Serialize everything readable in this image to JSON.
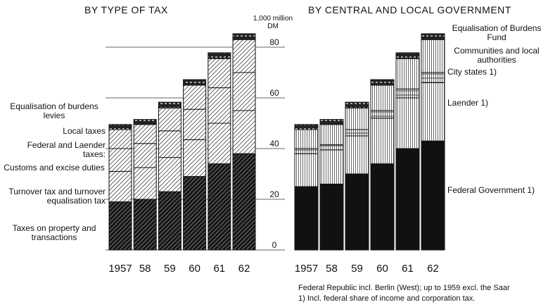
{
  "unit": "1,000 million DM",
  "footnotes": [
    "Federal Republic incl. Berlin (West); up to 1959 excl. the Saar",
    "1) Incl. federal share of income and corporation tax."
  ],
  "chart_data": [
    {
      "type": "stacked-bar",
      "title": "BY TYPE OF TAX",
      "annotation": "Federal and Laender taxes:",
      "categories": [
        "1957",
        "58",
        "59",
        "60",
        "61",
        "62"
      ],
      "ylim": [
        0,
        90
      ],
      "yticks": [
        0,
        20,
        40,
        60,
        80
      ],
      "grid": true,
      "series": [
        {
          "name": "Taxes on property and transactions",
          "color": "#111111",
          "values": [
            19,
            20,
            23,
            29,
            34,
            38
          ]
        },
        {
          "name": "Turnover tax and turnover equalisation tax",
          "color": "#555555",
          "values": [
            12,
            12.5,
            13.5,
            14.5,
            16,
            17
          ]
        },
        {
          "name": "Customs and excise duties",
          "color": "#555555",
          "values": [
            9,
            9.5,
            10.5,
            12,
            14,
            15
          ]
        },
        {
          "name": "Local taxes",
          "color": "#555555",
          "values": [
            7.5,
            7.5,
            9,
            9.5,
            11.5,
            13
          ]
        },
        {
          "name": "Equalisation of burdens levies",
          "color": "#222222",
          "values": [
            2,
            2,
            2.3,
            2.2,
            2.3,
            2.3
          ]
        }
      ]
    },
    {
      "type": "stacked-bar",
      "title": "BY CENTRAL AND LOCAL GOVERNMENT",
      "categories": [
        "1957",
        "58",
        "59",
        "60",
        "61",
        "62"
      ],
      "ylim": [
        0,
        90
      ],
      "series": [
        {
          "name": "Federal Government 1)",
          "color": "#111111",
          "values": [
            25,
            26,
            30,
            34,
            40,
            43
          ]
        },
        {
          "name": "Laender 1)",
          "color": "#444444",
          "values": [
            13,
            13.5,
            15,
            18,
            20,
            23
          ]
        },
        {
          "name": "City states 1)",
          "color": "#444444",
          "values": [
            2,
            2,
            2.5,
            3,
            3.5,
            4
          ]
        },
        {
          "name": "Communities and local authorities",
          "color": "#444444",
          "values": [
            7.5,
            8,
            8.5,
            10,
            12,
            13
          ]
        },
        {
          "name": "Equalisation of Burdens Fund",
          "color": "#222222",
          "values": [
            2,
            2,
            2.3,
            2.2,
            2.3,
            2.3
          ]
        }
      ]
    }
  ]
}
